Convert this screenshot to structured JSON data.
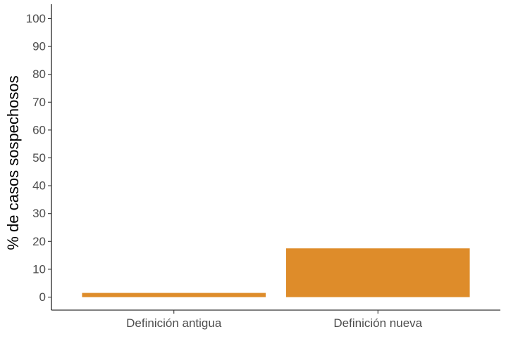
{
  "chart_data": {
    "type": "bar",
    "categories": [
      "Definición antigua",
      "Definición nueva"
    ],
    "values": [
      1.5,
      17.5
    ],
    "title": "",
    "xlabel": "",
    "ylabel": "% de casos sospechosos",
    "ylim": [
      0,
      100
    ],
    "yticks": [
      0,
      10,
      20,
      30,
      40,
      50,
      60,
      70,
      80,
      90,
      100
    ],
    "grid": false,
    "bar_color": "#DE8C2A"
  }
}
